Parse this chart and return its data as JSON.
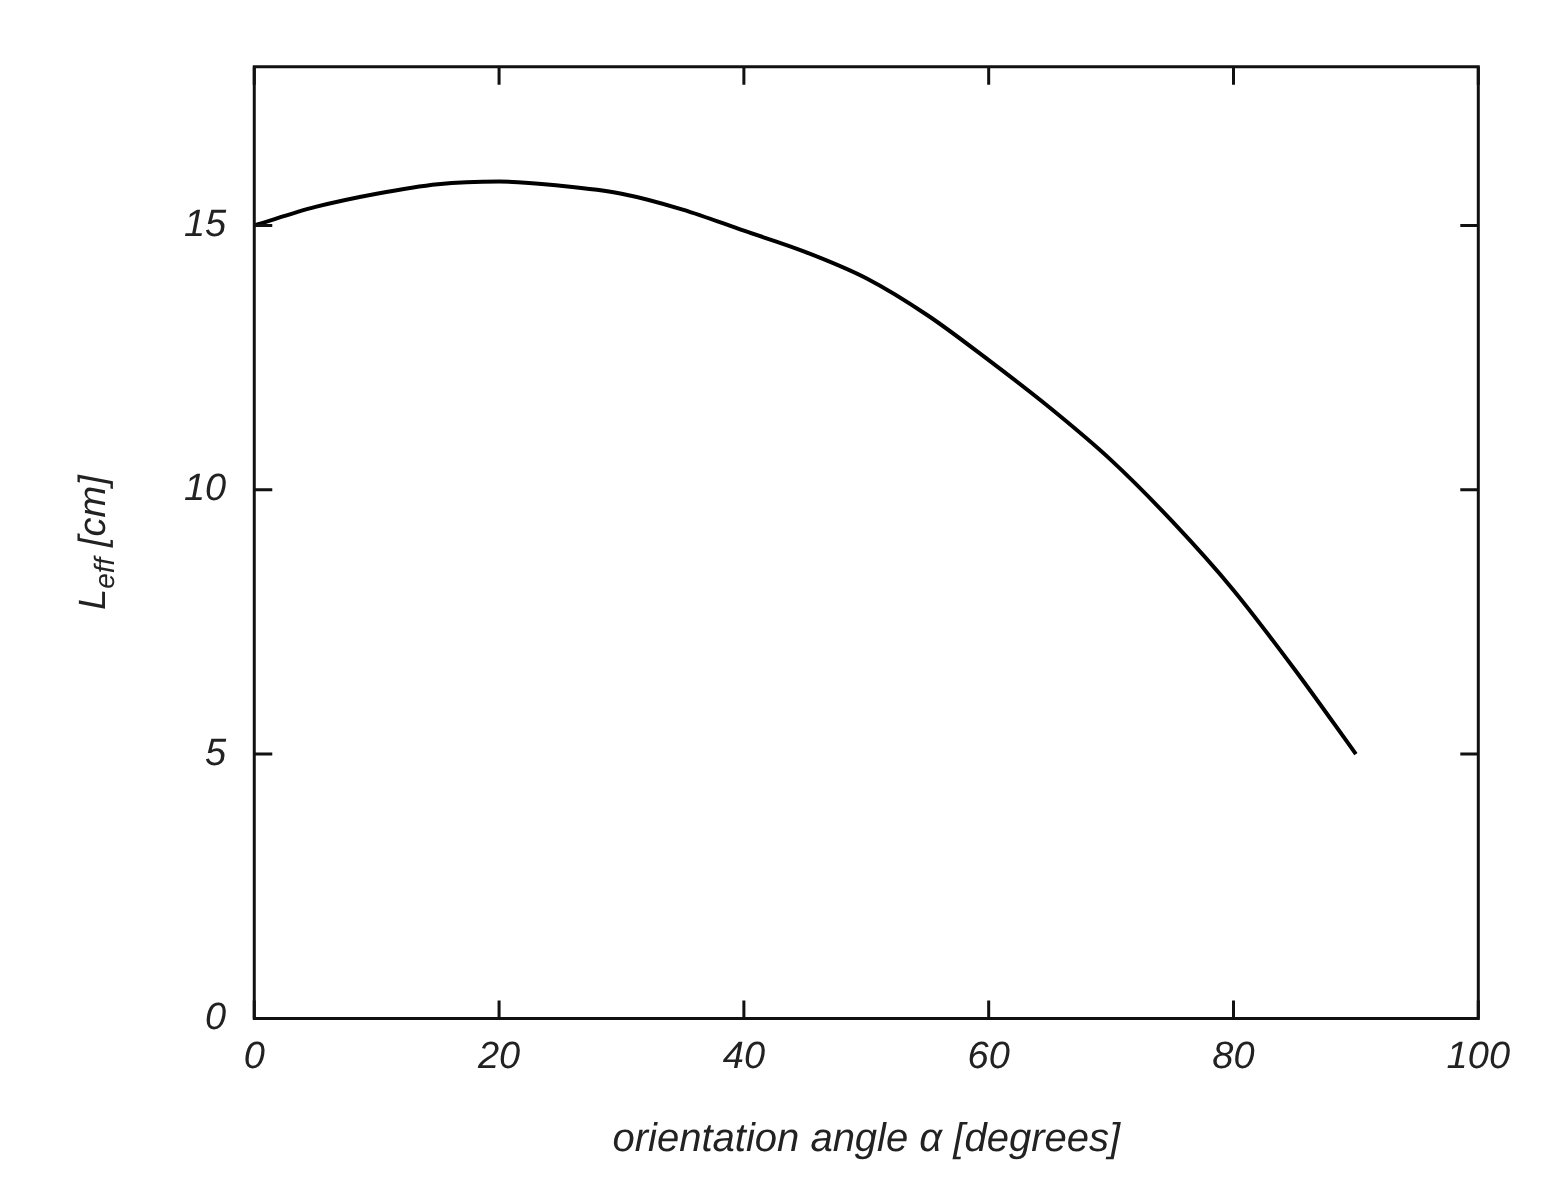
{
  "chart_data": {
    "type": "line",
    "xlabel": "orientation angle α [degrees]",
    "ylabel": "L$_{eff}$ [cm]",
    "series": [
      {
        "color": "#000000",
        "x": [
          0,
          5,
          10,
          15,
          20,
          25,
          30,
          35,
          40,
          45,
          50,
          55,
          60,
          65,
          70,
          75,
          80,
          85,
          90
        ],
        "values": [
          15,
          15.35,
          15.6,
          15.78,
          15.83,
          15.75,
          15.6,
          15.3,
          14.9,
          14.5,
          14.0,
          13.3,
          12.45,
          11.55,
          10.56,
          9.4,
          8.1,
          6.6,
          5
        ]
      }
    ],
    "xlim": [
      0,
      100
    ],
    "xticks": [
      0,
      20,
      40,
      60,
      80,
      100
    ],
    "ylim": [
      0,
      18
    ],
    "yticks": [
      0,
      5,
      10,
      15
    ],
    "grid": false,
    "legend": false,
    "marker": "none",
    "line_style": "solid"
  }
}
